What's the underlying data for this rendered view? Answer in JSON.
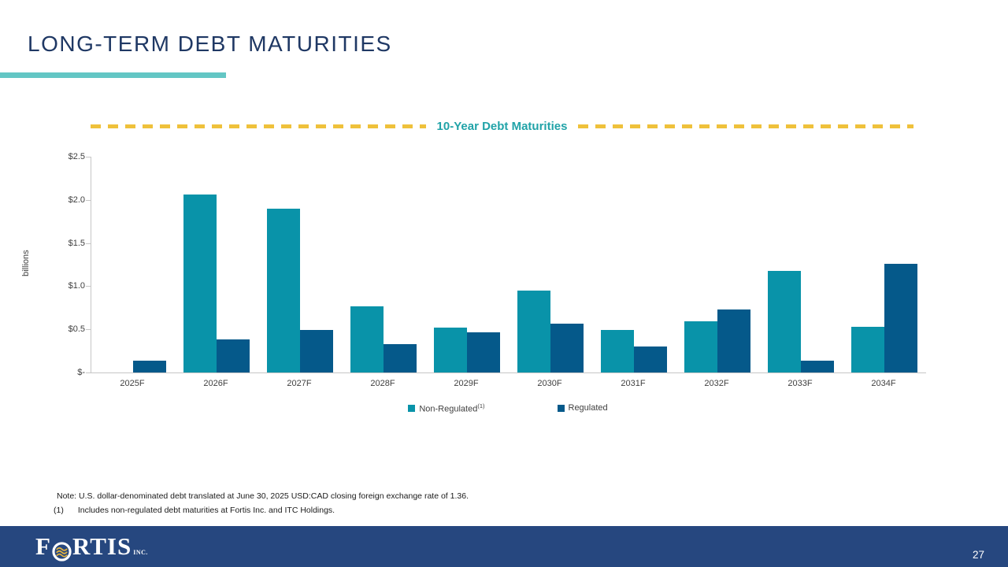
{
  "slide": {
    "title": "LONG-TERM DEBT MATURITIES",
    "page_number": "27",
    "footnotes": {
      "note": "Note: U.S. dollar-denominated debt translated at June 30, 2025 USD:CAD closing foreign exchange rate of 1.36.",
      "footnote1_marker": "(1)",
      "footnote1_text": "Includes non-regulated debt maturities at Fortis Inc. and ITC Holdings."
    },
    "logo": {
      "letter_f": "F",
      "letters_rtis": "RTIS",
      "suffix": "INC."
    }
  },
  "chart_data": {
    "type": "bar",
    "title": "10-Year Debt Maturities",
    "ylabel": "billions",
    "categories": [
      "2025F",
      "2026F",
      "2027F",
      "2028F",
      "2029F",
      "2030F",
      "2031F",
      "2032F",
      "2033F",
      "2034F"
    ],
    "series": [
      {
        "name": "Non-Regulated",
        "superscript": "(1)",
        "color": "#0993A9",
        "values": [
          0,
          2.06,
          1.9,
          0.77,
          0.52,
          0.95,
          0.49,
          0.59,
          1.18,
          0.53
        ]
      },
      {
        "name": "Regulated",
        "superscript": "",
        "color": "#05598A",
        "values": [
          0.14,
          0.38,
          0.49,
          0.33,
          0.47,
          0.57,
          0.3,
          0.73,
          0.14,
          1.26
        ]
      }
    ],
    "ylim": [
      0,
      2.5
    ],
    "ytick_labels": [
      "$2.5",
      "$2.0",
      "$1.5",
      "$1.0",
      "$0.5",
      "$-"
    ],
    "grid": false,
    "legend_position": "bottom"
  },
  "colors": {
    "title_navy": "#1F3864",
    "underline_teal": "#63C6C4",
    "chart_title_teal": "#21A3A8",
    "dash_gold": "#EFC13B",
    "bar_non_regulated": "#0993A9",
    "bar_regulated": "#05598A",
    "footer_navy": "#26477F",
    "axis_gray": "#C6C6C6",
    "logo_wave_gold": "#E3B23C"
  }
}
